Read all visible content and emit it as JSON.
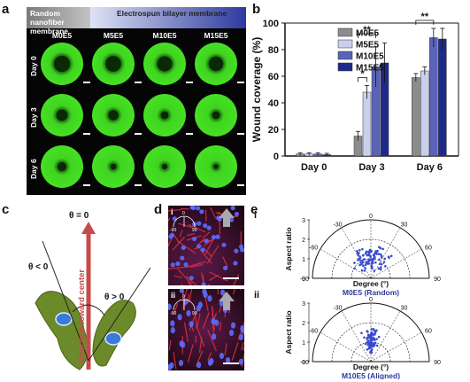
{
  "panels": {
    "a": "a",
    "b": "b",
    "c": "c",
    "d": "d",
    "e": "e"
  },
  "panel_a": {
    "band_left": "Random nanofiber membrane",
    "band_left_line1": "Random nanofiber",
    "band_left_line2": "membrane",
    "band_right": "Electrospun bilayer membrane",
    "columns": [
      "M0E5",
      "M5E5",
      "M10E5",
      "M15E5"
    ],
    "rows": [
      "Day 0",
      "Day 3",
      "Day 6"
    ]
  },
  "chart_data": {
    "type": "bar",
    "ylabel": "Wound coverage (%)",
    "ylim": [
      0,
      100
    ],
    "yticks": [
      0,
      20,
      40,
      60,
      80,
      100
    ],
    "categories": [
      "Day 0",
      "Day 3",
      "Day 6"
    ],
    "series": [
      {
        "name": "M0E5",
        "color": "#8c8c8c",
        "values": [
          1.5,
          15,
          59
        ],
        "errors": [
          1,
          3.5,
          3
        ]
      },
      {
        "name": "M5E5",
        "color": "#c9d0ec",
        "values": [
          1.5,
          48,
          64
        ],
        "errors": [
          1,
          5,
          3
        ]
      },
      {
        "name": "M10E5",
        "color": "#5b63b8",
        "values": [
          1.5,
          67,
          89
        ],
        "errors": [
          1,
          15,
          7
        ]
      },
      {
        "name": "M15E5",
        "color": "#1d2a8a",
        "values": [
          1,
          70,
          88
        ],
        "errors": [
          1,
          15,
          8
        ]
      }
    ],
    "significance": [
      {
        "label": "*",
        "category": "Day 3",
        "from": "M0E5",
        "to": "M5E5"
      },
      {
        "label": "**",
        "category": "Day 3",
        "from": "M0E5",
        "to": "M10E5"
      },
      {
        "label": "**",
        "category": "Day 6",
        "from": "M0E5",
        "to": "M10E5"
      }
    ],
    "legend_position": "top-right"
  },
  "panel_c": {
    "theta_zero": "θ = 0",
    "theta_neg": "θ < 0",
    "theta_pos": "θ > 0",
    "direction": "Direction toward center"
  },
  "panel_d": {
    "sub_i": "i",
    "sub_ii": "ii",
    "angle_zero": "0",
    "angle_neg": "-90",
    "angle_pos": "90"
  },
  "panel_e": {
    "sub_i": "i",
    "sub_ii": "ii",
    "ylabel": "Aspect ratio",
    "xlabel": "Degree (°)",
    "caption_i": "M0E5 (Random)",
    "caption_ii": "M10E5 (Aligned)",
    "angle_labels": [
      "-90",
      "-60",
      "-30",
      "0",
      "30",
      "60",
      "90"
    ],
    "radial_ticks": [
      "0",
      "1",
      "2",
      "3"
    ]
  },
  "colors": {
    "green": "#34c41a",
    "grey_band": "#9a9a9a",
    "blue_band": "#2d3a9e",
    "arrow_red": "#c84b4b",
    "cell_green": "#6b8a2a",
    "nucleus": "#3a7ad8",
    "caption_blue": "#2d3a9e"
  }
}
